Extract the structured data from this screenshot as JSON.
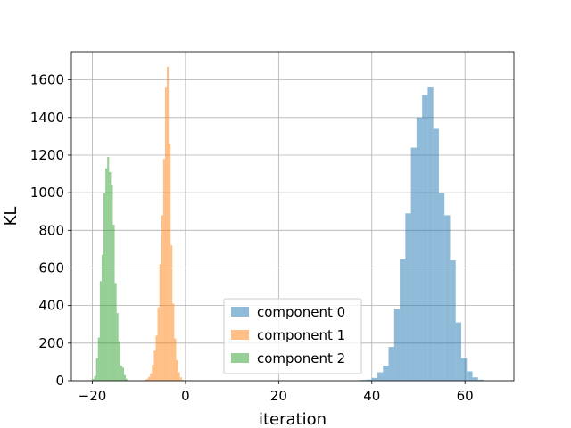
{
  "chart_data": {
    "type": "histogram",
    "xlabel": "iteration",
    "ylabel": "KL",
    "xlim": [
      -24.5,
      70.5
    ],
    "ylim": [
      0,
      1750
    ],
    "xticks": [
      -20,
      0,
      20,
      40,
      60
    ],
    "yticks": [
      0,
      200,
      400,
      600,
      800,
      1000,
      1200,
      1400,
      1600
    ],
    "grid": true,
    "legend_position": "lower center",
    "series": [
      {
        "name": "component 0",
        "color": "#1f77b4",
        "opacity": 0.5,
        "bins": [
          {
            "x0": 37.6,
            "x1": 38.8,
            "y": 4
          },
          {
            "x0": 38.8,
            "x1": 40.0,
            "y": 6
          },
          {
            "x0": 40.0,
            "x1": 41.2,
            "y": 15
          },
          {
            "x0": 41.2,
            "x1": 42.4,
            "y": 45
          },
          {
            "x0": 42.4,
            "x1": 43.6,
            "y": 80
          },
          {
            "x0": 43.6,
            "x1": 44.8,
            "y": 180
          },
          {
            "x0": 44.8,
            "x1": 46.0,
            "y": 380
          },
          {
            "x0": 46.0,
            "x1": 47.2,
            "y": 645
          },
          {
            "x0": 47.2,
            "x1": 48.4,
            "y": 890
          },
          {
            "x0": 48.4,
            "x1": 49.6,
            "y": 1240
          },
          {
            "x0": 49.6,
            "x1": 50.8,
            "y": 1400
          },
          {
            "x0": 50.8,
            "x1": 52.0,
            "y": 1520
          },
          {
            "x0": 52.0,
            "x1": 53.2,
            "y": 1560
          },
          {
            "x0": 53.2,
            "x1": 54.4,
            "y": 1340
          },
          {
            "x0": 54.4,
            "x1": 55.6,
            "y": 1000
          },
          {
            "x0": 55.6,
            "x1": 56.8,
            "y": 880
          },
          {
            "x0": 56.8,
            "x1": 58.0,
            "y": 640
          },
          {
            "x0": 58.0,
            "x1": 59.2,
            "y": 310
          },
          {
            "x0": 59.2,
            "x1": 60.4,
            "y": 120
          },
          {
            "x0": 60.4,
            "x1": 61.6,
            "y": 50
          },
          {
            "x0": 61.6,
            "x1": 62.8,
            "y": 18
          },
          {
            "x0": 62.8,
            "x1": 64.0,
            "y": 5
          }
        ]
      },
      {
        "name": "component 1",
        "color": "#ff7f0e",
        "opacity": 0.5,
        "bins": [
          {
            "x0": -8.8,
            "x1": -8.4,
            "y": 5
          },
          {
            "x0": -8.4,
            "x1": -8.0,
            "y": 10
          },
          {
            "x0": -8.0,
            "x1": -7.6,
            "y": 20
          },
          {
            "x0": -7.6,
            "x1": -7.2,
            "y": 40
          },
          {
            "x0": -7.2,
            "x1": -6.8,
            "y": 85
          },
          {
            "x0": -6.8,
            "x1": -6.4,
            "y": 160
          },
          {
            "x0": -6.4,
            "x1": -6.0,
            "y": 240
          },
          {
            "x0": -6.0,
            "x1": -5.6,
            "y": 390
          },
          {
            "x0": -5.6,
            "x1": -5.2,
            "y": 620
          },
          {
            "x0": -5.2,
            "x1": -4.8,
            "y": 880
          },
          {
            "x0": -4.8,
            "x1": -4.4,
            "y": 1180
          },
          {
            "x0": -4.4,
            "x1": -4.0,
            "y": 1560
          },
          {
            "x0": -4.0,
            "x1": -3.6,
            "y": 1670
          },
          {
            "x0": -3.6,
            "x1": -3.2,
            "y": 1260
          },
          {
            "x0": -3.2,
            "x1": -2.8,
            "y": 720
          },
          {
            "x0": -2.8,
            "x1": -2.4,
            "y": 410
          },
          {
            "x0": -2.4,
            "x1": -2.0,
            "y": 225
          },
          {
            "x0": -2.0,
            "x1": -1.6,
            "y": 110
          },
          {
            "x0": -1.6,
            "x1": -1.2,
            "y": 45
          },
          {
            "x0": -1.2,
            "x1": -0.8,
            "y": 18
          },
          {
            "x0": -0.8,
            "x1": -0.4,
            "y": 6
          }
        ]
      },
      {
        "name": "component 2",
        "color": "#2ca02c",
        "opacity": 0.5,
        "bins": [
          {
            "x0": -20.0,
            "x1": -19.6,
            "y": 10
          },
          {
            "x0": -19.6,
            "x1": -19.2,
            "y": 25
          },
          {
            "x0": -19.2,
            "x1": -18.8,
            "y": 120
          },
          {
            "x0": -18.8,
            "x1": -18.4,
            "y": 230
          },
          {
            "x0": -18.4,
            "x1": -18.0,
            "y": 530
          },
          {
            "x0": -18.0,
            "x1": -17.6,
            "y": 670
          },
          {
            "x0": -17.6,
            "x1": -17.2,
            "y": 1000
          },
          {
            "x0": -17.2,
            "x1": -16.8,
            "y": 1130
          },
          {
            "x0": -16.8,
            "x1": -16.4,
            "y": 1190
          },
          {
            "x0": -16.4,
            "x1": -16.0,
            "y": 1110
          },
          {
            "x0": -16.0,
            "x1": -15.6,
            "y": 1040
          },
          {
            "x0": -15.6,
            "x1": -15.2,
            "y": 830
          },
          {
            "x0": -15.2,
            "x1": -14.8,
            "y": 520
          },
          {
            "x0": -14.8,
            "x1": -14.4,
            "y": 360
          },
          {
            "x0": -14.4,
            "x1": -14.0,
            "y": 210
          },
          {
            "x0": -14.0,
            "x1": -13.6,
            "y": 80
          },
          {
            "x0": -13.6,
            "x1": -13.2,
            "y": 70
          },
          {
            "x0": -13.2,
            "x1": -12.8,
            "y": 30
          },
          {
            "x0": -12.8,
            "x1": -12.4,
            "y": 10
          }
        ]
      }
    ]
  }
}
